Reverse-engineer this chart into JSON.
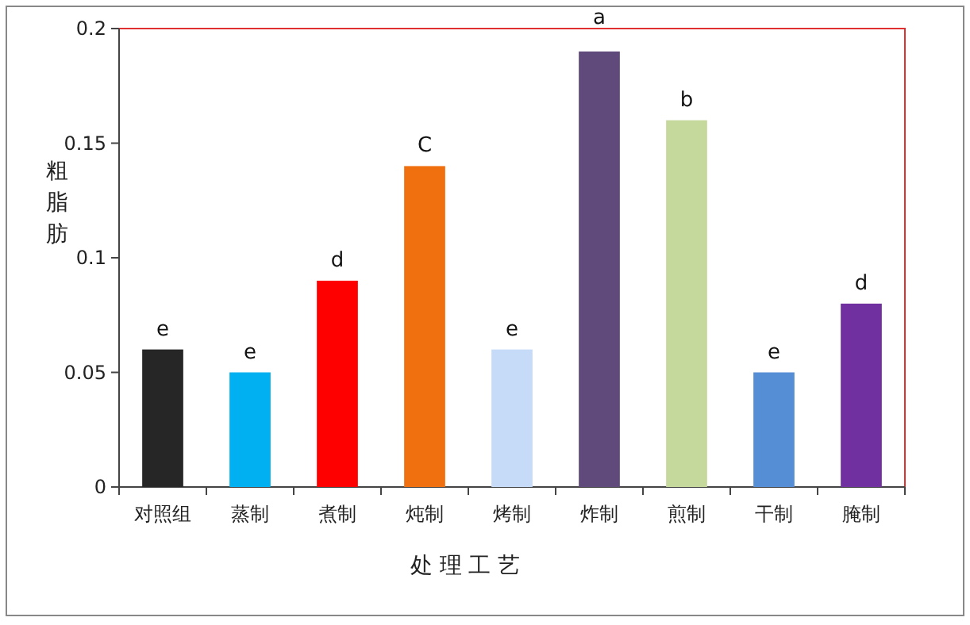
{
  "chart_data": {
    "type": "bar",
    "xlabel": "处 理 工 艺",
    "ylabel": "粗脂肪",
    "categories": [
      "对照组",
      "蒸制",
      "煮制",
      "炖制",
      "烤制",
      "炸制",
      "煎制",
      "干制",
      "腌制"
    ],
    "values": [
      0.06,
      0.05,
      0.09,
      0.14,
      0.06,
      0.19,
      0.16,
      0.05,
      0.08
    ],
    "colors": [
      "#262626",
      "#00b0f0",
      "#ff0000",
      "#f07010",
      "#c6dbf7",
      "#604a7b",
      "#c4d99b",
      "#558ed5",
      "#7030a0"
    ],
    "ylim": [
      0,
      0.2
    ],
    "yticks": [
      0,
      0.05,
      0.1,
      0.15,
      0.2
    ],
    "annotations": [
      {
        "text": "e",
        "x": "对照组",
        "y": 0.06
      },
      {
        "text": "e",
        "x": "蒸制",
        "y": 0.05
      },
      {
        "text": "d",
        "x": "煮制",
        "y": 0.09
      },
      {
        "text": "C",
        "x": "炖制",
        "y": 0.14
      },
      {
        "text": "e",
        "x": "烤制",
        "y": 0.06
      },
      {
        "text": "a",
        "x": "炸制",
        "y": 0.19
      },
      {
        "text": "b",
        "x": "煎制",
        "y": 0.16
      },
      {
        "text": "e",
        "x": "干制",
        "y": 0.05
      },
      {
        "text": "d",
        "x": "腌制",
        "y": 0.08
      }
    ]
  }
}
